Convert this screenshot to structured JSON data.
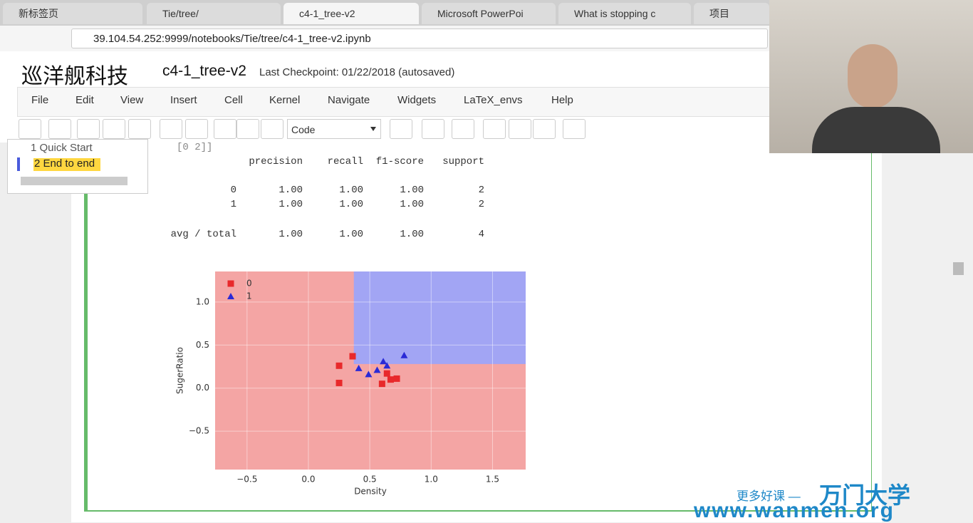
{
  "browser": {
    "tabs": [
      "新标签页",
      "Tie/tree/",
      "c4-1_tree-v2",
      "Microsoft PowerPoi",
      "What is stopping c",
      "项目"
    ],
    "url": "39.104.54.252:9999/notebooks/Tie/tree/c4-1_tree-v2.ipynb"
  },
  "notebook": {
    "logo": "巡洋舰科技",
    "name": "c4-1_tree-v2",
    "checkpoint": "Last Checkpoint: 01/22/2018 (autosaved)",
    "menu": [
      "File",
      "Edit",
      "View",
      "Insert",
      "Cell",
      "Kernel",
      "Navigate",
      "Widgets",
      "LaTeX_envs",
      "Help"
    ],
    "cell_type": "Code"
  },
  "toc": [
    "1 Quick Start",
    "2 End to end"
  ],
  "output": {
    "partial_line": "[0 2]]",
    "report": {
      "header": [
        "precision",
        "recall",
        "f1-score",
        "support"
      ],
      "rows": [
        {
          "label": "0",
          "cells": [
            "1.00",
            "1.00",
            "1.00",
            "2"
          ]
        },
        {
          "label": "1",
          "cells": [
            "1.00",
            "1.00",
            "1.00",
            "2"
          ]
        },
        {
          "label": "avg / total",
          "cells": [
            "1.00",
            "1.00",
            "1.00",
            "4"
          ]
        }
      ]
    }
  },
  "watermark": {
    "lead": "更多好课 —",
    "brand": "万门大学",
    "site": "www.wanmen.org"
  },
  "chart_data": {
    "type": "scatter",
    "xlabel": "Density",
    "ylabel": "SugerRatio",
    "xlim": [
      -0.76,
      1.77
    ],
    "ylim": [
      -0.946,
      1.355
    ],
    "xticks": [
      {
        "value": -0.5,
        "label": "−0.5"
      },
      {
        "value": 0,
        "label": "0.0"
      },
      0.5,
      {
        "value": 1,
        "label": "1.0"
      },
      1.5
    ],
    "yticks": [
      {
        "value": -0.5,
        "label": "−0.5"
      },
      {
        "value": 0,
        "label": "0.0"
      },
      0.5,
      {
        "value": 1,
        "label": "1.0"
      }
    ],
    "grid": true,
    "background_color": "#f4a5a4",
    "region_color": "#a2a5f4",
    "decision_boundary": {
      "x": 0.37,
      "y": 0.28
    },
    "series": [
      {
        "name": "0",
        "color": "#e8292b",
        "marker": "square",
        "x": [
          0.36,
          0.25,
          0.25,
          0.64,
          0.6,
          0.67,
          0.72
        ],
        "y": [
          0.37,
          0.26,
          0.06,
          0.17,
          0.05,
          0.1,
          0.11
        ]
      },
      {
        "name": "1",
        "color": "#2a2ad6",
        "marker": "triangle",
        "x": [
          0.41,
          0.49,
          0.56,
          0.61,
          0.64,
          0.78
        ],
        "y": [
          0.23,
          0.16,
          0.21,
          0.31,
          0.26,
          0.38
        ]
      }
    ]
  }
}
